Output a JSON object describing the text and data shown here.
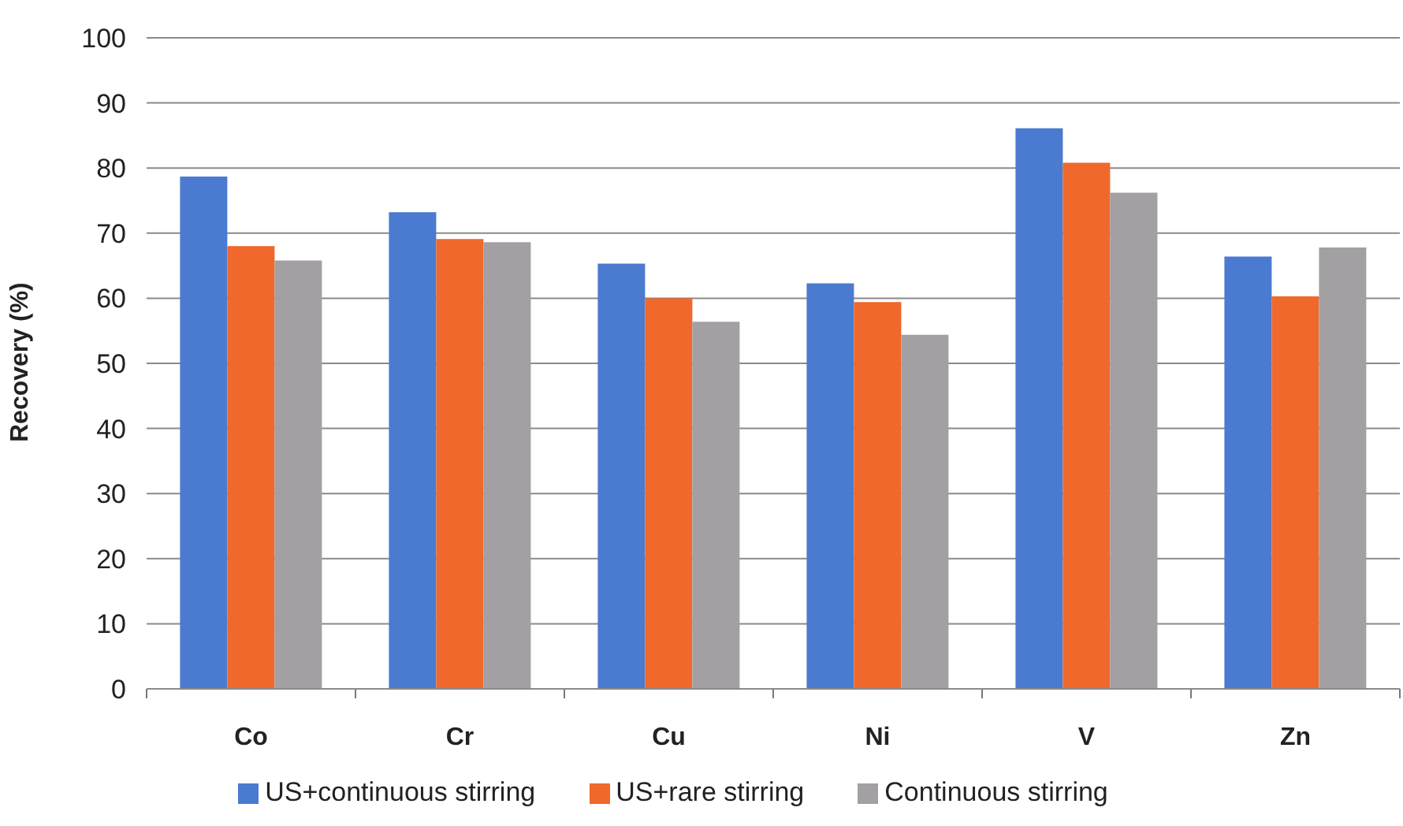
{
  "chart_data": {
    "type": "bar",
    "ylabel": "Recovery (%)",
    "categories": [
      "Co",
      "Cr",
      "Cu",
      "Ni",
      "V",
      "Zn"
    ],
    "series": [
      {
        "name": "US+continuous stirring",
        "color": "#4a7bd0",
        "values": [
          78.7,
          73.2,
          65.3,
          62.3,
          86.1,
          66.4
        ]
      },
      {
        "name": "US+rare stirring",
        "color": "#f0682c",
        "values": [
          68.0,
          69.1,
          60.0,
          59.4,
          80.8,
          60.3
        ]
      },
      {
        "name": "Continuous stirring",
        "color": "#a3a0a3",
        "values": [
          65.8,
          68.6,
          56.4,
          54.4,
          76.2,
          67.8
        ]
      }
    ],
    "ylim": [
      0,
      100
    ],
    "yticks": [
      0,
      10,
      20,
      30,
      40,
      50,
      60,
      70,
      80,
      90,
      100
    ],
    "grid": "y",
    "legend": "bottom"
  }
}
